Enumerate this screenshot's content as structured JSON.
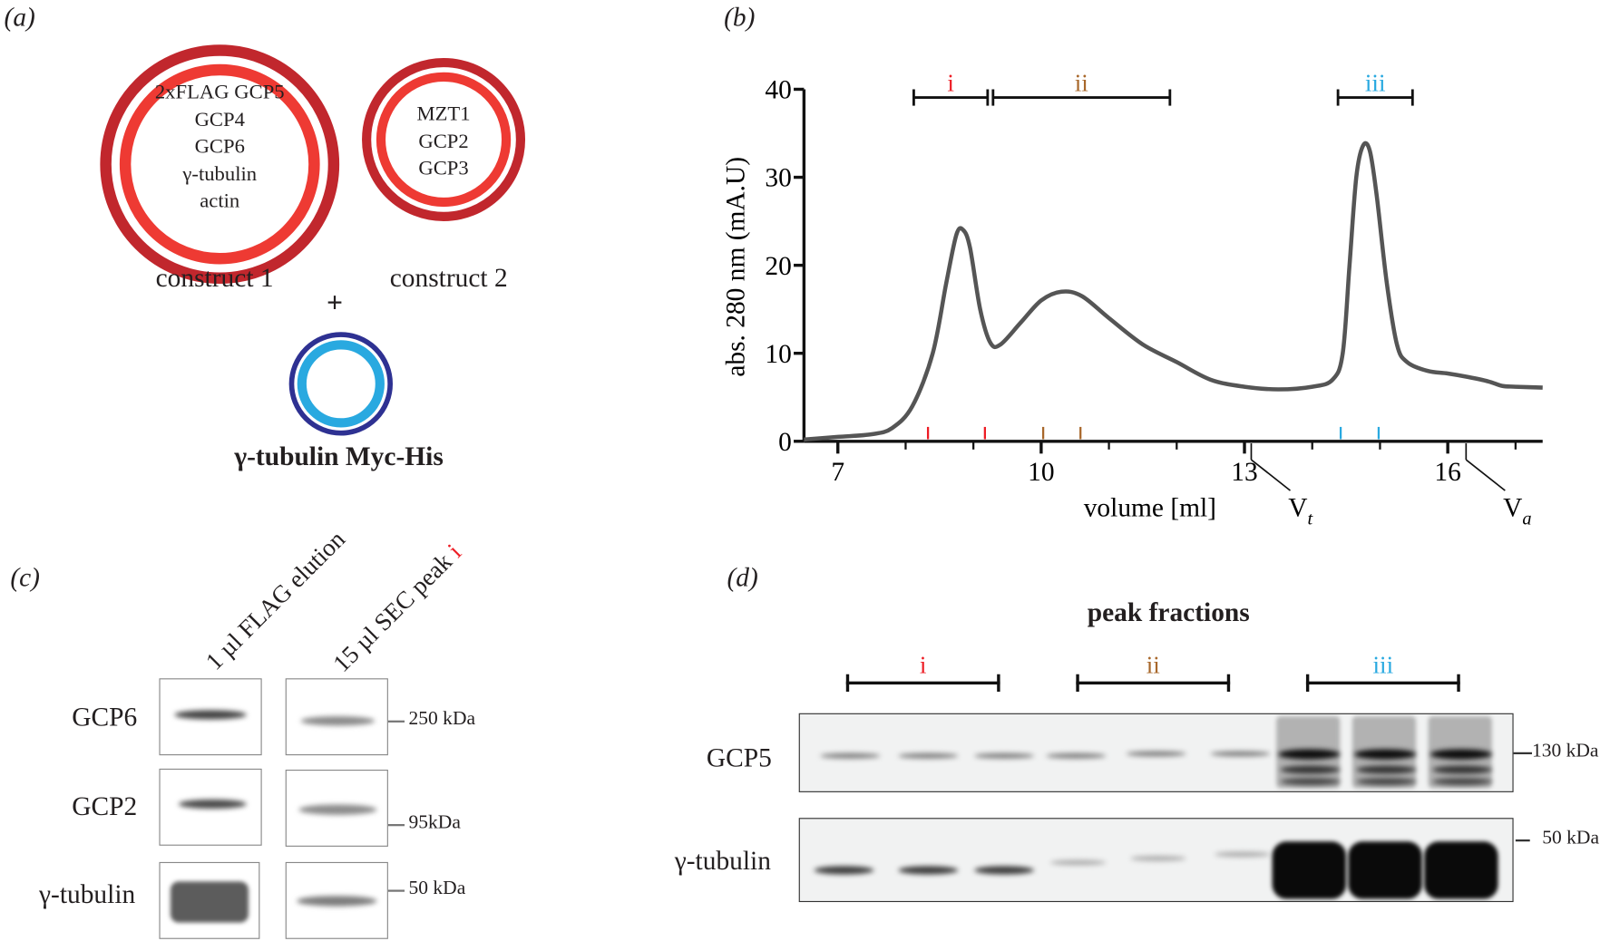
{
  "panels": {
    "a": "(a)",
    "b": "(b)",
    "c": "(c)",
    "d": "(d)"
  },
  "panel_a": {
    "construct1": {
      "lines": [
        "2xFLAG GCP5",
        "GCP4",
        "GCP6",
        "γ-tubulin",
        "actin"
      ],
      "label": "construct 1"
    },
    "construct2": {
      "lines": [
        "MZT1",
        "GCP2",
        "GCP3"
      ],
      "label": "construct 2"
    },
    "plus": "+",
    "construct3": {
      "label": "γ-tubulin Myc-His"
    },
    "colors": {
      "outer_red": "#c1272d",
      "inner_red": "#ee3a33",
      "outer_blue": "#2e3192",
      "inner_blue": "#29a9e0"
    }
  },
  "chart_data": {
    "type": "line",
    "xlabel": "volume [ml]",
    "ylabel": "abs. 280 nm (mA.U)",
    "xlim": [
      6.5,
      17.4
    ],
    "ylim": [
      0,
      40
    ],
    "xticks": [
      "7",
      "10",
      "13",
      "16"
    ],
    "yticks": [
      "0",
      "10",
      "20",
      "30",
      "40"
    ],
    "line_color": "#555555",
    "x": [
      6.5,
      7,
      7.5,
      7.8,
      8.1,
      8.4,
      8.6,
      8.75,
      8.85,
      8.95,
      9.1,
      9.25,
      9.4,
      9.7,
      10,
      10.3,
      10.6,
      11,
      11.5,
      12,
      12.5,
      13,
      13.5,
      14,
      14.3,
      14.45,
      14.55,
      14.65,
      14.75,
      14.85,
      14.95,
      15.1,
      15.25,
      15.4,
      15.7,
      16,
      16.3,
      16.6,
      16.8,
      17,
      17.4
    ],
    "y": [
      0.2,
      0.5,
      0.8,
      1.5,
      4,
      10,
      18,
      23.5,
      24,
      22,
      15,
      11.2,
      11,
      13.5,
      16,
      17,
      16.5,
      14,
      11,
      9,
      7,
      6.2,
      5.9,
      6.2,
      7,
      10,
      20,
      30,
      33.6,
      33,
      28,
      18,
      11,
      9,
      8,
      7.7,
      7.3,
      6.8,
      6.3,
      6.2,
      6.1
    ],
    "peaks": [
      {
        "label": "i",
        "range": [
          8.12,
          9.21
        ],
        "fractions": [
          8.33,
          9.17
        ],
        "color": "#ed1c24"
      },
      {
        "label": "ii",
        "range": [
          9.29,
          11.9
        ],
        "fractions": [
          10.03,
          10.58
        ],
        "color": "#a8672a"
      },
      {
        "label": "iii",
        "range": [
          14.38,
          15.48
        ],
        "fractions": [
          14.42,
          14.98
        ],
        "color": "#29a9e0"
      }
    ],
    "annotations": [
      {
        "label": "V",
        "sub": "t",
        "x": 13.1
      },
      {
        "label": "V",
        "sub": "a",
        "x": 16.27
      }
    ]
  },
  "panel_c": {
    "lanes": [
      "1 µl FLAG elution",
      "15 µl SEC peak "
    ],
    "lane2_suffix": "i",
    "rows": [
      "GCP6",
      "GCP2",
      "γ-tubulin"
    ],
    "markers": [
      "250 kDa",
      "95kDa",
      "50 kDa"
    ]
  },
  "panel_d": {
    "title": "peak fractions",
    "groups": [
      {
        "label": "i",
        "color": "#ed1c24"
      },
      {
        "label": "ii",
        "color": "#a8672a"
      },
      {
        "label": "iii",
        "color": "#29a9e0"
      }
    ],
    "rows": [
      "GCP5",
      "γ-tubulin"
    ],
    "markers": [
      "130 kDa",
      "50 kDa"
    ]
  }
}
